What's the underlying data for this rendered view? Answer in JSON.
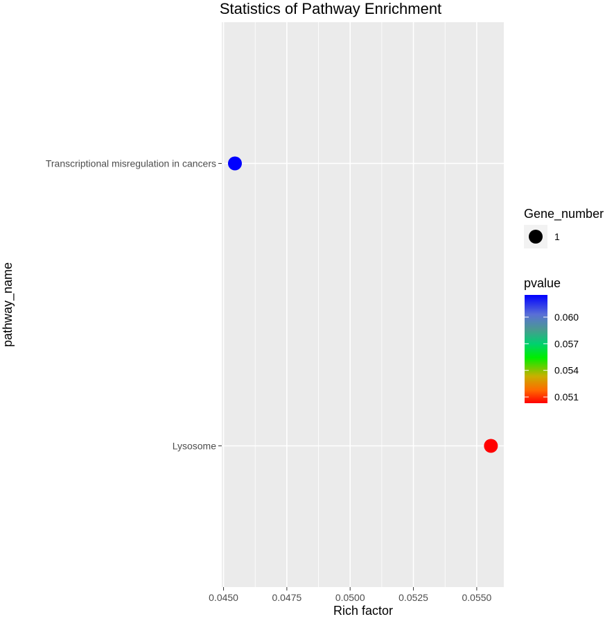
{
  "chart_data": {
    "type": "scatter",
    "title": "Statistics of Pathway Enrichment",
    "xlabel": "Rich factor",
    "ylabel": "pathway_name",
    "xlim": [
      0.04493,
      0.05607
    ],
    "x_ticks": [
      "0.0450",
      "0.0475",
      "0.0500",
      "0.0525",
      "0.0550"
    ],
    "x_tick_values": [
      0.045,
      0.0475,
      0.05,
      0.0525,
      0.055
    ],
    "categories": [
      "Lysosome",
      "Transcriptional misregulation in cancers"
    ],
    "points": [
      {
        "category": "Transcriptional misregulation in cancers",
        "x": 0.04545,
        "pvalue": 0.0625,
        "gene_number": 1,
        "color": "#0000ff"
      },
      {
        "category": "Lysosome",
        "x": 0.05556,
        "pvalue": 0.0503,
        "gene_number": 1,
        "color": "#ff0000"
      }
    ],
    "grid": true,
    "legend_position": "right",
    "size_legend": {
      "title": "Gene_number",
      "entries": [
        {
          "label": "1",
          "value": 1
        }
      ]
    },
    "color_legend": {
      "title": "pvalue",
      "range": [
        0.0503,
        0.0625
      ],
      "ticks": [
        "0.060",
        "0.057",
        "0.054",
        "0.051"
      ],
      "tick_values": [
        0.06,
        0.057,
        0.054,
        0.051
      ],
      "colors": [
        "#0000ff",
        "#00cc00",
        "#ff0000"
      ]
    },
    "panel_color": "#ebebeb",
    "grid_color": "#ffffff"
  }
}
